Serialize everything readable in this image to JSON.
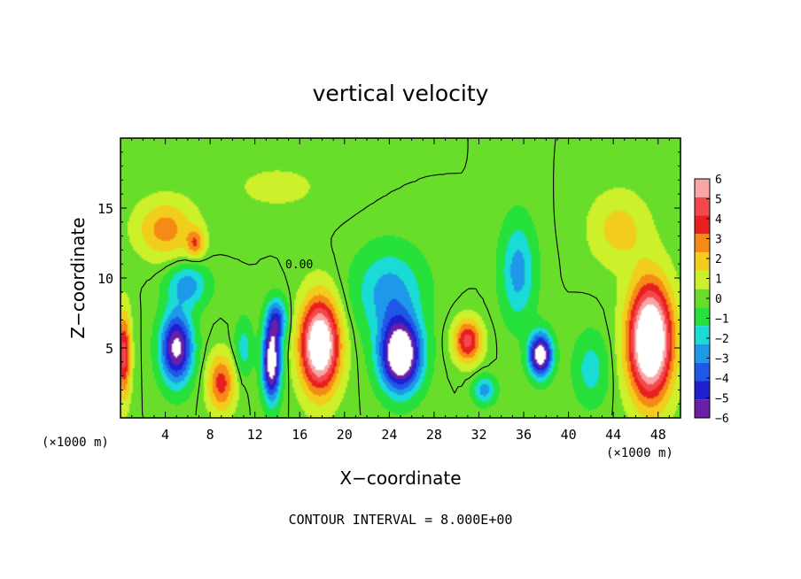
{
  "chart_data": {
    "type": "heatmap",
    "title": "vertical velocity",
    "xlabel": "X−coordinate",
    "ylabel": "Z−coordinate",
    "x_unit_left": "(×1000 m)",
    "x_unit_right": "(×1000 m)",
    "xlim": [
      0,
      50
    ],
    "ylim": [
      0,
      20
    ],
    "x_ticks": [
      4,
      8,
      12,
      16,
      20,
      24,
      28,
      32,
      36,
      40,
      44,
      48
    ],
    "y_ticks": [
      5,
      10,
      15
    ],
    "contour_label": "0.00",
    "contour_annotation": "CONTOUR INTERVAL = 8.000E+00",
    "colorbar": {
      "levels": [
        6,
        5,
        4,
        3,
        2,
        1,
        0,
        -1,
        -2,
        -3,
        -4,
        -5,
        -6
      ],
      "labels": [
        "6",
        "5",
        "4",
        "3",
        "2",
        "1",
        "0",
        "−1",
        "−2",
        "−3",
        "−4",
        "−5",
        "−6"
      ],
      "colors": [
        "#f9a5a5",
        "#f4484c",
        "#e81f1f",
        "#f68a16",
        "#f3cd1b",
        "#ccf02a",
        "#69de2a",
        "#26e03b",
        "#1adbd6",
        "#1e99ea",
        "#1f57e6",
        "#1f1fd2",
        "#6b1fa6"
      ],
      "saturation_color": "#ffffff"
    },
    "features": [
      {
        "x": 0.3,
        "z": 4.5,
        "sx": 0.6,
        "sz": 3.0,
        "value": 5
      },
      {
        "x": 5.0,
        "z": 5.0,
        "sx": 1.4,
        "sz": 2.5,
        "value": -7
      },
      {
        "x": 6.0,
        "z": 9.5,
        "sx": 1.8,
        "sz": 1.5,
        "value": -3
      },
      {
        "x": 4.0,
        "z": 13.5,
        "sx": 2.5,
        "sz": 2.0,
        "value": 3
      },
      {
        "x": 6.7,
        "z": 12.5,
        "sx": 0.8,
        "sz": 1.0,
        "value": 3
      },
      {
        "x": 9.0,
        "z": 2.5,
        "sx": 1.2,
        "sz": 2.0,
        "value": 4
      },
      {
        "x": 11.0,
        "z": 5.0,
        "sx": 0.8,
        "sz": 2.0,
        "value": -2
      },
      {
        "x": 13.5,
        "z": 4.0,
        "sx": 0.8,
        "sz": 2.6,
        "value": -8
      },
      {
        "x": 14.0,
        "z": 7.0,
        "sx": 0.9,
        "sz": 1.5,
        "value": -4
      },
      {
        "x": 17.8,
        "z": 5.2,
        "sx": 1.7,
        "sz": 3.2,
        "value": 9
      },
      {
        "x": 25.0,
        "z": 4.5,
        "sx": 1.8,
        "sz": 2.5,
        "value": -9
      },
      {
        "x": 24.0,
        "z": 9.0,
        "sx": 3.0,
        "sz": 3.0,
        "value": -3
      },
      {
        "x": 31.0,
        "z": 5.5,
        "sx": 1.2,
        "sz": 1.5,
        "value": 5
      },
      {
        "x": 32.5,
        "z": 2.0,
        "sx": 1.0,
        "sz": 1.0,
        "value": -3
      },
      {
        "x": 37.5,
        "z": 4.5,
        "sx": 1.0,
        "sz": 1.5,
        "value": -8
      },
      {
        "x": 35.5,
        "z": 10.5,
        "sx": 1.5,
        "sz": 3.5,
        "value": -3
      },
      {
        "x": 42.0,
        "z": 3.5,
        "sx": 1.5,
        "sz": 2.5,
        "value": -2
      },
      {
        "x": 47.3,
        "z": 5.5,
        "sx": 1.9,
        "sz": 4.0,
        "value": 10
      },
      {
        "x": 44.5,
        "z": 13.5,
        "sx": 2.5,
        "sz": 2.5,
        "value": 2
      },
      {
        "x": 14.0,
        "z": 16.5,
        "sx": 5.0,
        "sz": 2.0,
        "value": 0.7
      }
    ]
  }
}
